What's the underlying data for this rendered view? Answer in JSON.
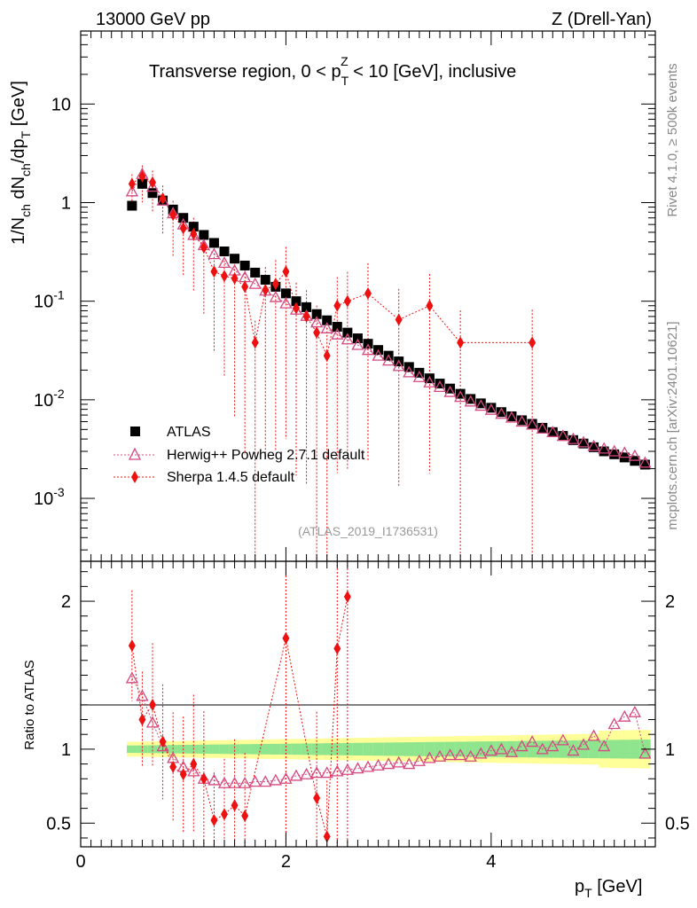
{
  "header": {
    "left": "13000 GeV pp",
    "right": "Z (Drell-Yan)"
  },
  "side": {
    "rivet": "Rivet 4.1.0, ≥ 500k events",
    "mcplots": "mcplots.cern.ch [arXiv:2401.10621]"
  },
  "chart_data": {
    "type": "scatter",
    "title_parts": {
      "a": "Transverse region, 0 < p",
      "sub": "T",
      "sup": "Z",
      "b": " < 10 [GeV], inclusive"
    },
    "analysis_id": "(ATLAS_2019_I1736531)",
    "ylabel_parts": {
      "p1": "1/N",
      "s1": "ch",
      "p2": " dN",
      "s2": "ch",
      "p3": "/dp",
      "s3": "T",
      "p4": " [GeV]"
    },
    "xlabel": {
      "main": "p",
      "sub": "T",
      "unit": " [GeV]"
    },
    "ratio_ylabel": "Ratio to ATLAS",
    "xlim": [
      0,
      5.6
    ],
    "ylim_log": [
      0.00023,
      55
    ],
    "ratio_ylim": [
      0.34,
      2.27
    ],
    "x_ticks": [
      "0",
      "2",
      "4"
    ],
    "y_ticks": [
      {
        "base": "10",
        "exp": "-3"
      },
      {
        "base": "10",
        "exp": "-2"
      },
      {
        "base": "10",
        "exp": "-1"
      },
      {
        "base": "1",
        "exp": ""
      },
      {
        "base": "10",
        "exp": ""
      }
    ],
    "ratio_ticks": [
      "0.5",
      "1",
      "2"
    ],
    "legend": [
      "ATLAS",
      "Herwig++ Powheg 2.7.1 default",
      "Sherpa 1.4.5 default"
    ],
    "x": [
      0.5,
      0.6,
      0.7,
      0.8,
      0.9,
      1.0,
      1.1,
      1.2,
      1.3,
      1.4,
      1.5,
      1.6,
      1.7,
      1.8,
      1.9,
      2.0,
      2.1,
      2.2,
      2.3,
      2.4,
      2.5,
      2.6,
      2.7,
      2.8,
      2.9,
      3.0,
      3.1,
      3.2,
      3.3,
      3.4,
      3.5,
      3.6,
      3.7,
      3.8,
      3.9,
      4.0,
      4.1,
      4.2,
      4.3,
      4.4,
      4.5,
      4.6,
      4.7,
      4.8,
      4.9,
      5.0,
      5.1,
      5.2,
      5.3,
      5.4,
      5.5
    ],
    "series": [
      {
        "name": "ATLAS",
        "color": "#000000",
        "values": [
          0.93,
          1.55,
          1.25,
          1.05,
          0.85,
          0.7,
          0.57,
          0.47,
          0.39,
          0.32,
          0.27,
          0.23,
          0.195,
          0.165,
          0.14,
          0.12,
          0.1,
          0.087,
          0.074,
          0.064,
          0.055,
          0.048,
          0.042,
          0.037,
          0.032,
          0.028,
          0.0245,
          0.0215,
          0.0188,
          0.0165,
          0.0146,
          0.013,
          0.0115,
          0.0102,
          0.0092,
          0.0083,
          0.0075,
          0.0068,
          0.0062,
          0.0057,
          0.0052,
          0.0047,
          0.0043,
          0.0039,
          0.0036,
          0.0033,
          0.003,
          0.0028,
          0.0026,
          0.0024,
          0.0022
        ]
      },
      {
        "name": "Herwig++ Powheg 2.7.1 default",
        "color": "#d54980",
        "values": [
          1.3,
          1.95,
          1.45,
          1.05,
          0.78,
          0.6,
          0.47,
          0.37,
          0.3,
          0.245,
          0.205,
          0.175,
          0.15,
          0.128,
          0.11,
          0.095,
          0.082,
          0.071,
          0.061,
          0.053,
          0.046,
          0.041,
          0.036,
          0.032,
          0.028,
          0.025,
          0.022,
          0.019,
          0.017,
          0.015,
          0.0135,
          0.012,
          0.0107,
          0.0096,
          0.0087,
          0.0079,
          0.0072,
          0.0066,
          0.006,
          0.0056,
          0.0051,
          0.0047,
          0.0043,
          0.004,
          0.0037,
          0.0034,
          0.0032,
          0.003,
          0.0029,
          0.0027,
          0.0023
        ]
      },
      {
        "name": "Sherpa 1.4.5 default",
        "color": "#ee1111",
        "values": [
          1.55,
          1.85,
          1.6,
          1.1,
          0.75,
          0.55,
          0.48,
          0.35,
          0.2,
          0.18,
          0.17,
          0.14,
          0.038,
          0.13,
          0.15,
          0.2,
          0.085,
          0.07,
          0.048,
          0.028,
          0.09,
          0.1,
          0.12,
          0.065,
          0.09,
          0.038,
          0.038
        ]
      }
    ],
    "sherpa_x": [
      0.5,
      0.6,
      0.7,
      0.8,
      0.9,
      1.0,
      1.1,
      1.2,
      1.3,
      1.4,
      1.5,
      1.6,
      1.7,
      1.8,
      1.9,
      2.0,
      2.1,
      2.2,
      2.3,
      2.4,
      2.5,
      2.6,
      2.8,
      3.1,
      3.4,
      3.7,
      4.4
    ],
    "ratio": {
      "herwig": [
        1.48,
        1.36,
        1.18,
        1.02,
        0.94,
        0.88,
        0.85,
        0.8,
        0.79,
        0.77,
        0.77,
        0.77,
        0.78,
        0.78,
        0.79,
        0.8,
        0.82,
        0.83,
        0.84,
        0.84,
        0.85,
        0.86,
        0.87,
        0.88,
        0.89,
        0.9,
        0.91,
        0.9,
        0.92,
        0.94,
        0.95,
        0.96,
        0.96,
        0.95,
        0.97,
        0.99,
        1.0,
        0.98,
        1.02,
        1.05,
        1.0,
        1.02,
        1.06,
        0.99,
        1.03,
        1.09,
        1.02,
        1.17,
        1.22,
        1.25,
        0.97
      ],
      "sherpa_x": [
        0.5,
        0.6,
        0.7,
        0.8,
        0.9,
        1.0,
        1.1,
        1.2,
        1.3,
        1.4,
        1.5,
        1.6,
        2.0,
        2.3,
        2.4,
        2.5,
        2.6
      ],
      "sherpa": [
        1.7,
        1.2,
        1.3,
        1.05,
        0.88,
        0.83,
        0.9,
        0.8,
        0.52,
        0.56,
        0.62,
        0.55,
        1.75,
        0.67,
        0.41,
        1.68,
        2.03
      ]
    }
  }
}
